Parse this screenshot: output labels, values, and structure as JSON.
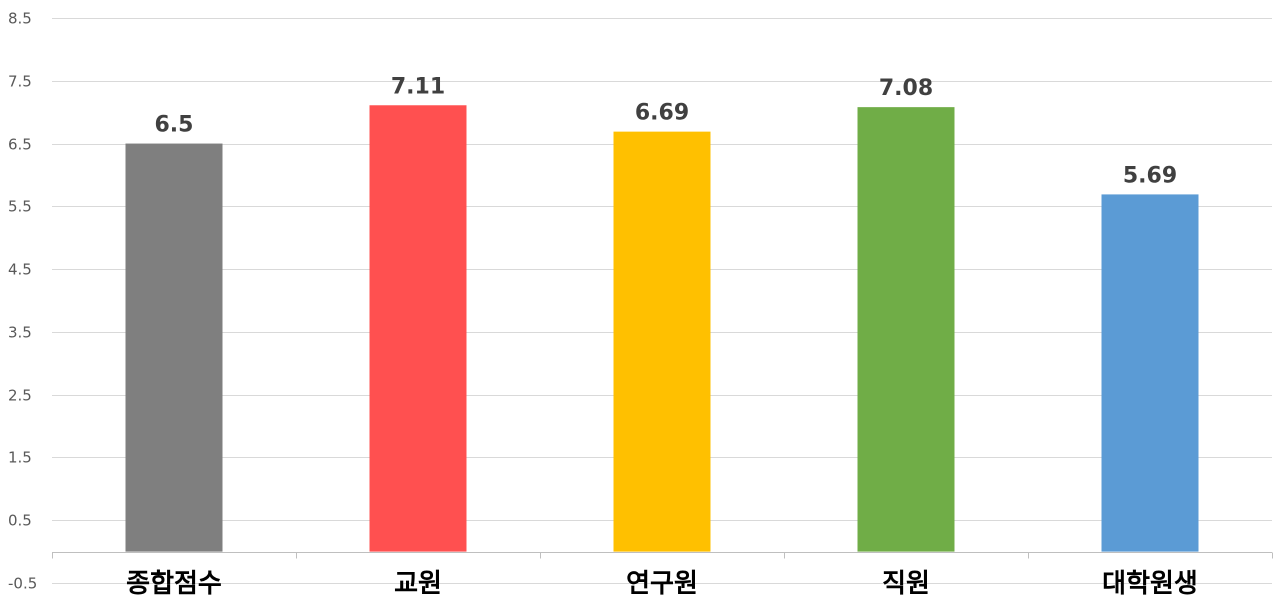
{
  "chart_data": {
    "type": "bar",
    "categories": [
      "종합점수",
      "교원",
      "연구원",
      "직원",
      "대학원생"
    ],
    "values": [
      6.5,
      7.11,
      6.69,
      7.08,
      5.69
    ],
    "data_labels": [
      "6.5",
      "7.11",
      "6.69",
      "7.08",
      "5.69"
    ],
    "bar_colors": [
      "#7f7f7f",
      "#ff5050",
      "#ffc000",
      "#70ad47",
      "#5b9bd5"
    ],
    "y_ticks": [
      -0.5,
      0.5,
      1.5,
      2.5,
      3.5,
      4.5,
      5.5,
      6.5,
      7.5,
      8.5
    ],
    "y_tick_labels": [
      "-0.5",
      "0.5",
      "1.5",
      "2.5",
      "3.5",
      "4.5",
      "5.5",
      "6.5",
      "7.5",
      "8.5"
    ],
    "ylim": [
      -0.5,
      8.5
    ],
    "baseline": 0,
    "grid": true,
    "legend": "none",
    "title": "",
    "xlabel": "",
    "ylabel": ""
  }
}
